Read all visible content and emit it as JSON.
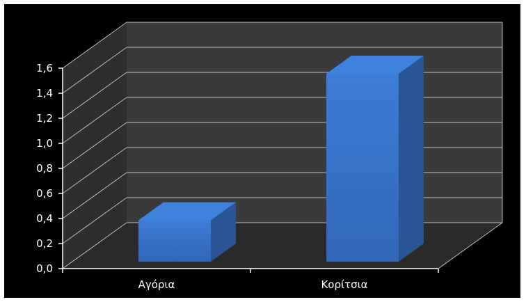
{
  "chart_data": {
    "type": "bar",
    "categories": [
      "Αγόρια",
      "Κορίτσια"
    ],
    "values": [
      0.33,
      1.5
    ],
    "title": "",
    "xlabel": "",
    "ylabel": "",
    "ylim": [
      0,
      1.6
    ],
    "y_ticks": [
      "0,0",
      "0,2",
      "0,4",
      "0,6",
      "0,8",
      "1,0",
      "1,2",
      "1,4",
      "1,6"
    ],
    "grid": true,
    "legend": "none",
    "style": "3d-column",
    "colors": {
      "background": "#000000",
      "back_wall": "#3a3a3a",
      "side_wall": "#2e2e2e",
      "floor": "#2a2a2a",
      "grid": "#bdbdbd",
      "axis": "#ffffff",
      "bar_front": "#3b78d3",
      "bar_side": "#2a5595",
      "bar_top": "#3f82dd"
    }
  }
}
